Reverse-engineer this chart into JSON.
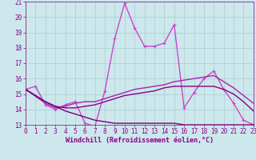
{
  "background_color": "#cce8ec",
  "line_color": "#990099",
  "xlabel": "Windchill (Refroidissement éolien,°C)",
  "xlim": [
    0,
    23
  ],
  "ylim": [
    13,
    21
  ],
  "xticks": [
    0,
    1,
    2,
    3,
    4,
    5,
    6,
    7,
    8,
    9,
    10,
    11,
    12,
    13,
    14,
    15,
    16,
    17,
    18,
    19,
    20,
    21,
    22,
    23
  ],
  "yticks": [
    13,
    14,
    15,
    16,
    17,
    18,
    19,
    20,
    21
  ],
  "series": [
    {
      "x": [
        0,
        1,
        2,
        3,
        4,
        5,
        6,
        7,
        8,
        9,
        10,
        11,
        12,
        13,
        14,
        15,
        16,
        17,
        18,
        19,
        20,
        21,
        22,
        23
      ],
      "y": [
        15.3,
        15.5,
        14.3,
        14.0,
        14.3,
        14.5,
        13.1,
        12.9,
        15.2,
        18.6,
        20.9,
        19.3,
        18.1,
        18.1,
        18.3,
        19.5,
        14.1,
        15.1,
        16.0,
        16.5,
        15.3,
        14.4,
        13.3,
        13.0
      ],
      "color": "#cc44cc",
      "lw": 1.0,
      "marker": "+"
    },
    {
      "x": [
        0,
        2,
        3,
        4,
        5,
        6,
        7,
        8,
        9,
        10,
        11,
        12,
        13,
        14,
        15,
        16,
        17,
        18,
        19,
        20,
        21,
        22,
        23
      ],
      "y": [
        15.3,
        14.4,
        14.1,
        14.2,
        14.4,
        14.5,
        14.5,
        14.7,
        14.9,
        15.1,
        15.3,
        15.4,
        15.5,
        15.6,
        15.8,
        15.9,
        16.0,
        16.1,
        16.2,
        15.8,
        15.4,
        14.9,
        14.4
      ],
      "color": "#aa22aa",
      "lw": 1.0,
      "marker": null
    },
    {
      "x": [
        0,
        2,
        3,
        4,
        5,
        6,
        7,
        8,
        9,
        10,
        11,
        12,
        13,
        14,
        15,
        16,
        17,
        18,
        19,
        20,
        21,
        22,
        23
      ],
      "y": [
        15.3,
        14.5,
        14.2,
        14.1,
        14.1,
        14.2,
        14.3,
        14.5,
        14.7,
        14.9,
        15.0,
        15.1,
        15.2,
        15.4,
        15.5,
        15.5,
        15.5,
        15.5,
        15.5,
        15.3,
        15.0,
        14.5,
        13.9
      ],
      "color": "#880088",
      "lw": 1.0,
      "marker": null
    },
    {
      "x": [
        0,
        2,
        3,
        4,
        5,
        6,
        7,
        8,
        9,
        10,
        11,
        12,
        13,
        14,
        15,
        16,
        17,
        18,
        19,
        20,
        21,
        22,
        23
      ],
      "y": [
        15.3,
        14.5,
        14.2,
        13.9,
        13.7,
        13.5,
        13.3,
        13.2,
        13.1,
        13.1,
        13.1,
        13.1,
        13.1,
        13.1,
        13.1,
        13.0,
        13.0,
        13.0,
        13.0,
        13.0,
        13.0,
        13.0,
        13.0
      ],
      "color": "#770077",
      "lw": 1.0,
      "marker": null
    }
  ],
  "grid_color": "#aacccc",
  "tick_label_color": "#880088",
  "tick_label_size": 5.5,
  "xlabel_size": 6.0
}
